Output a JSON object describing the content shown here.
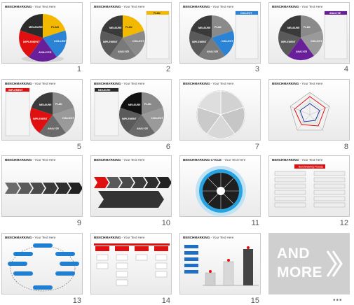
{
  "slides": [
    {
      "num": "1",
      "title": "BENCHMARKING",
      "subtitle": " - Your Text Here",
      "labels": [
        "MEASURE",
        "PLAN",
        "COLLECT",
        "ANALYZE",
        "IMPLEMENT"
      ]
    },
    {
      "num": "2",
      "title": "BENCHMARKING",
      "subtitle": " - Your Text Here",
      "panel": "PLAN",
      "labels": [
        "MEASURE",
        "PLAN",
        "COLLECT",
        "ANALYZE",
        "IMPLEMENT"
      ]
    },
    {
      "num": "3",
      "title": "BENCHMARKING",
      "subtitle": " - Your Text Here",
      "panel": "COLLECT",
      "labels": [
        "MEASURE",
        "PLAN",
        "COLLECT",
        "ANALYZE",
        "IMPLEMENT"
      ]
    },
    {
      "num": "4",
      "title": "BENCHMARKING",
      "subtitle": " - Your Text Here",
      "panel": "ANALYZE",
      "labels": [
        "MEASURE",
        "PLAN",
        "COLLECT",
        "ANALYZE",
        "IMPLEMENT"
      ]
    },
    {
      "num": "5",
      "title": "BENCHMARKING",
      "subtitle": " - Your Text Here",
      "panel": "IMPLEMENT",
      "labels": [
        "MEASURE",
        "PLAN",
        "COLLECT",
        "ANALYZE",
        "IMPLEMENT"
      ]
    },
    {
      "num": "6",
      "title": "BENCHMARKING",
      "subtitle": " - Your Text Here",
      "panel": "MEASURE",
      "labels": [
        "MEASURE",
        "PLAN",
        "COLLECT",
        "ANALYZE",
        "IMPLEMENT"
      ]
    },
    {
      "num": "7",
      "title": "BENCHMARKING",
      "subtitle": " - Your Text Here"
    },
    {
      "num": "8",
      "title": "BENCHMARKING",
      "subtitle": " - Your Text Here"
    },
    {
      "num": "9",
      "title": "BENCHMARKING",
      "subtitle": " - Your Text Here"
    },
    {
      "num": "10",
      "title": "BENCHMARKING",
      "subtitle": " - Your Text Here"
    },
    {
      "num": "11",
      "title": "BENCHMARKING CYCLE",
      "subtitle": " - Your Text Here"
    },
    {
      "num": "12",
      "title": "BENCHMARKING",
      "subtitle": " - Your Text Here",
      "header": "Benchmarking Process"
    },
    {
      "num": "13",
      "title": "BENCHMARKING",
      "subtitle": " - Your Text Here"
    },
    {
      "num": "14",
      "title": "BENCHMARKING",
      "subtitle": " - Your Text Here"
    },
    {
      "num": "15",
      "title": "BENCHMARKING",
      "subtitle": " - Your Text Here"
    }
  ],
  "more": {
    "line1": "AND",
    "line2": "MORE"
  },
  "dots": "•••",
  "colors": {
    "plan": "#f3b800",
    "collect": "#2a83d4",
    "analyze": "#6a1f9a",
    "implement": "#e01010",
    "measure": "#2b2b2b",
    "grey": "#8a8a8a"
  }
}
